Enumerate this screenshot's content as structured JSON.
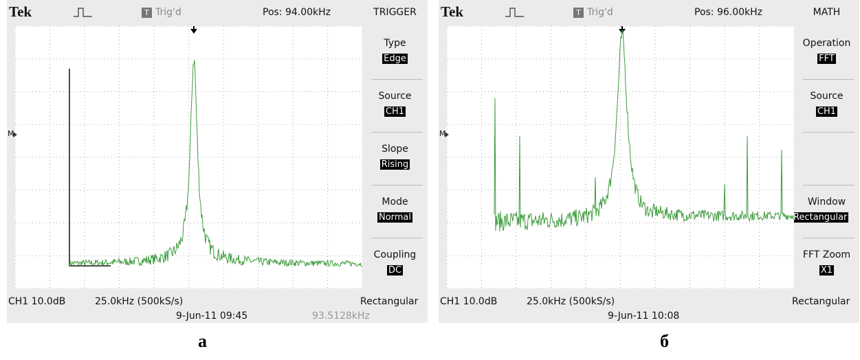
{
  "panels": [
    {
      "header": {
        "brand": "Tek",
        "trigger_icon": "T",
        "status": "Trig'd",
        "position": "Pos: 94.00kHz",
        "menu_title": "TRIGGER"
      },
      "marker": "M",
      "menu": [
        {
          "label": "Type",
          "value": "Edge"
        },
        {
          "label": "Source",
          "value": "CH1"
        },
        {
          "label": "Slope",
          "value": "Rising"
        },
        {
          "label": "Mode",
          "value": "Normal"
        },
        {
          "label": "Coupling",
          "value": "DC"
        }
      ],
      "footer": {
        "channel": "CH1 10.0dB",
        "timebase": "25.0kHz (500kS/s)",
        "window": "Rectangular",
        "datetime": "9-Jun-11 09:45",
        "frequency": "93.5128kHz"
      },
      "caption": "а"
    },
    {
      "header": {
        "brand": "Tek",
        "trigger_icon": "T",
        "status": "Trig'd",
        "position": "Pos: 96.00kHz",
        "menu_title": "MATH"
      },
      "marker": "M",
      "menu": [
        {
          "label": "Operation",
          "value": "FFT"
        },
        {
          "label": "Source",
          "value": "CH1"
        },
        {
          "label": "Window",
          "value": "Rectangular"
        },
        {
          "label": "FFT Zoom",
          "value": "X1"
        }
      ],
      "footer": {
        "channel": "CH1 10.0dB",
        "timebase": "25.0kHz (500kS/s)",
        "window": "Rectangular",
        "datetime": "9-Jun-11 10:08"
      },
      "caption": "б"
    }
  ]
}
